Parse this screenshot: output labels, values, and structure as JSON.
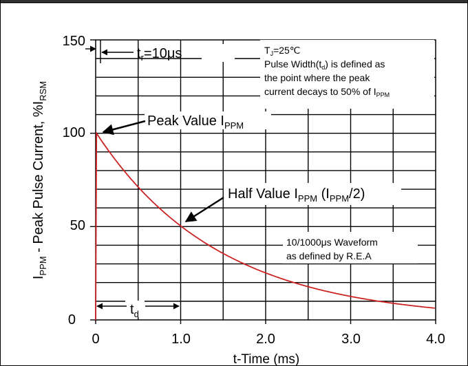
{
  "chart_data": {
    "type": "line",
    "x_unit": "ms",
    "xlabel": "t-Time (ms)",
    "ylabel_main": "I",
    "ylabel_main_sub": "PPM",
    "ylabel_rest": " - Peak Pulse Current, %I",
    "ylabel_rest_sub": "RSM",
    "xlim": [
      0,
      4.0
    ],
    "ylim": [
      0,
      150
    ],
    "x_ticks": [
      0,
      1.0,
      2.0,
      3.0,
      4.0
    ],
    "x_tick_labels": [
      "0",
      "1.0",
      "2.0",
      "3.0",
      "4.0"
    ],
    "y_ticks": [
      0,
      50,
      100,
      150
    ],
    "y_tick_labels": [
      "0",
      "50",
      "100",
      "150"
    ],
    "grid": true,
    "series": [
      {
        "color": "#cc2222",
        "x": [
          0,
          0.01,
          0.1,
          0.2,
          0.3,
          0.5,
          0.7,
          1.0,
          1.3,
          1.6,
          2.0,
          2.5,
          3.0,
          3.5,
          4.0
        ],
        "y": [
          0,
          100,
          93.3,
          87.1,
          81.2,
          70.7,
          61.6,
          50.0,
          40.6,
          33.0,
          25.0,
          17.7,
          12.5,
          8.8,
          6.3
        ]
      }
    ],
    "annotations": {
      "tr_prefix": "t",
      "tr_sub": "r",
      "tr_suffix": "=10μs",
      "tj_prefix": "T",
      "tj_sub": "J",
      "tj_suffix": "=25℃",
      "pw_line1_a": "Pulse Width(t",
      "pw_line1_sub": "d",
      "pw_line1_b": ") is defined as",
      "pw_line2": "the point where the peak",
      "pw_line3_a": "current decays to 50% of I",
      "pw_line3_sub": "PPM",
      "peak_a": "Peak Value I",
      "peak_sub": "PPM",
      "half_a": "Half Value I",
      "half_sub1": "PPM",
      "half_b": " (I",
      "half_sub2": "PPM",
      "half_c": "/2)",
      "wave_line1": "10/1000μs Waveform",
      "wave_line2": "as defined by R.E.A",
      "td_prefix": "t",
      "td_sub": "d"
    }
  },
  "colors": {
    "curve": "#cc2222",
    "ink": "#000000",
    "background": "#ffffff"
  }
}
